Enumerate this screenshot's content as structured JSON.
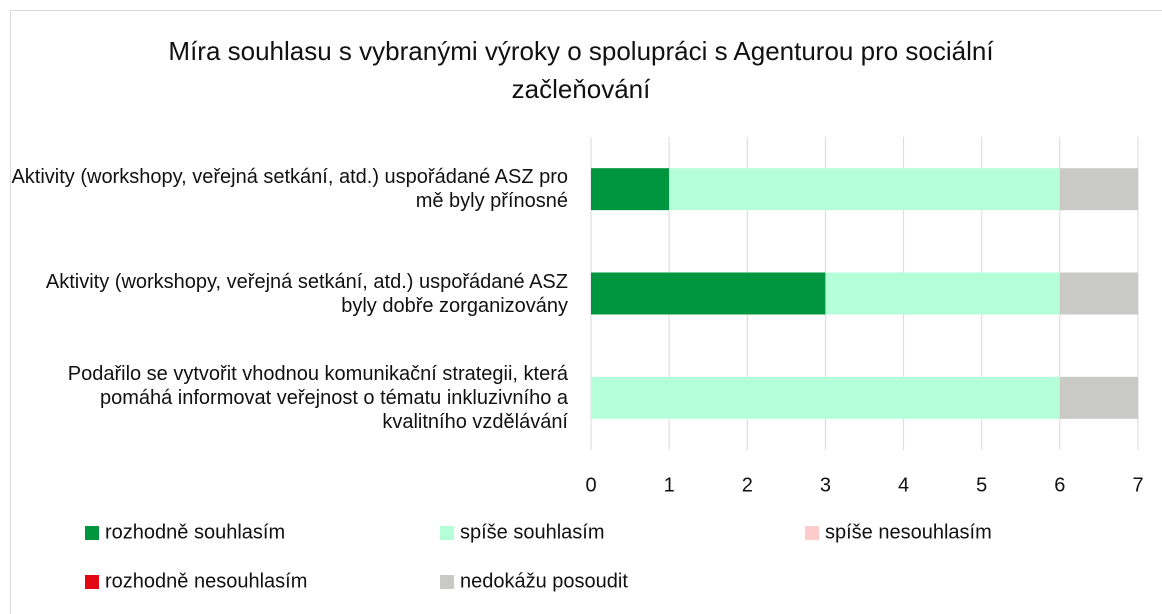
{
  "chart_data": {
    "type": "stacked_barh",
    "title": "Míra souhlasu s vybranými výroky o spolupráci s Agenturou pro sociální začleňování",
    "categories": [
      "Aktivity (workshopy, veřejná setkání, atd.) uspořádané ASZ pro mě byly přínosné",
      "Aktivity (workshopy, veřejná setkání, atd.) uspořádané ASZ byly dobře zorganizovány",
      "Podařilo se vytvořit vhodnou komunikační strategii, která pomáhá informovat veřejnost o tématu inkluzivního a kvalitního vzdělávání"
    ],
    "series": [
      {
        "name": "rozhodně souhlasím",
        "color": "#00953f",
        "values": [
          1,
          3,
          0
        ]
      },
      {
        "name": "spíše souhlasím",
        "color": "#b5ffd8",
        "values": [
          5,
          3,
          6
        ]
      },
      {
        "name": "spíše nesouhlasím",
        "color": "#ffcccc",
        "values": [
          0,
          0,
          0
        ]
      },
      {
        "name": "rozhodně nesouhlasím",
        "color": "#e30613",
        "values": [
          0,
          0,
          0
        ]
      },
      {
        "name": "nedokážu posoudit",
        "color": "#c9c9c5",
        "values": [
          1,
          1,
          1
        ]
      }
    ],
    "xlim": [
      0,
      7
    ],
    "xticks": [
      0,
      1,
      2,
      3,
      4,
      5,
      6,
      7
    ],
    "grid": true,
    "legend": "bottom"
  }
}
